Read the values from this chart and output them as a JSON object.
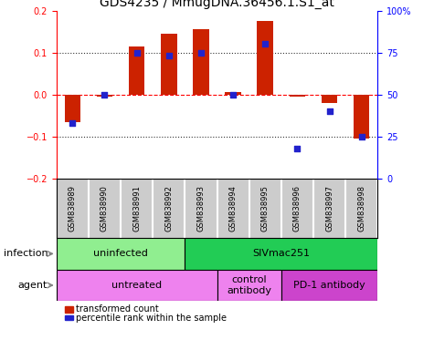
{
  "title": "GDS4235 / MmugDNA.36456.1.S1_at",
  "samples": [
    "GSM838989",
    "GSM838990",
    "GSM838991",
    "GSM838992",
    "GSM838993",
    "GSM838994",
    "GSM838995",
    "GSM838996",
    "GSM838997",
    "GSM838998"
  ],
  "transformed_count": [
    -0.065,
    -0.005,
    0.115,
    0.145,
    0.155,
    0.005,
    0.175,
    -0.005,
    -0.02,
    -0.105
  ],
  "percentile_rank": [
    33,
    50,
    75,
    73,
    75,
    50,
    80,
    18,
    40,
    25
  ],
  "ylim": [
    -0.2,
    0.2
  ],
  "yticks_left": [
    -0.2,
    -0.1,
    0,
    0.1,
    0.2
  ],
  "yticks_right": [
    0,
    25,
    50,
    75,
    100
  ],
  "infection_groups": [
    {
      "label": "uninfected",
      "start": 0,
      "end": 4,
      "color": "#90EE90"
    },
    {
      "label": "SIVmac251",
      "start": 4,
      "end": 10,
      "color": "#22CC55"
    }
  ],
  "agent_groups": [
    {
      "label": "untreated",
      "start": 0,
      "end": 5,
      "color": "#EE82EE"
    },
    {
      "label": "control\nantibody",
      "start": 5,
      "end": 7,
      "color": "#EE82EE"
    },
    {
      "label": "PD-1 antibody",
      "start": 7,
      "end": 10,
      "color": "#CC44CC"
    }
  ],
  "bar_color": "#CC2200",
  "dot_color": "#2222CC",
  "background_color": "#FFFFFF",
  "title_fontsize": 10,
  "tick_fontsize": 7,
  "label_fontsize": 8
}
